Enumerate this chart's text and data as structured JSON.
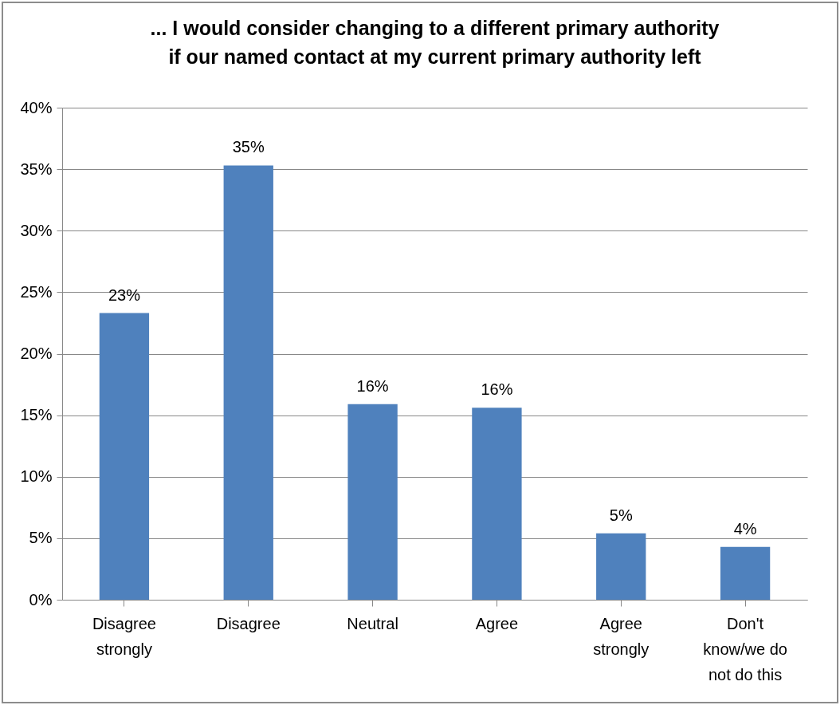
{
  "chart_data": {
    "type": "bar",
    "title": "... I would consider changing to a different primary authority if our named contact at my current primary authority left",
    "categories": [
      "Disagree strongly",
      "Disagree",
      "Neutral",
      "Agree",
      "Agree strongly",
      "Don't know/we do not do this"
    ],
    "values": [
      23.3,
      35.3,
      15.9,
      15.6,
      5.4,
      4.3
    ],
    "value_labels": [
      "23%",
      "35%",
      "16%",
      "16%",
      "5%",
      "4%"
    ],
    "color": "#4f81bd",
    "ylim": [
      0,
      40
    ],
    "yticks": [
      {
        "value": 0,
        "label": "0%"
      },
      {
        "value": 5,
        "label": "5%"
      },
      {
        "value": 10,
        "label": "10%"
      },
      {
        "value": 15,
        "label": "15%"
      },
      {
        "value": 20,
        "label": "20%"
      },
      {
        "value": 25,
        "label": "25%"
      },
      {
        "value": 30,
        "label": "30%"
      },
      {
        "value": 35,
        "label": "35%"
      },
      {
        "value": 40,
        "label": "40%"
      }
    ],
    "grid": "y"
  }
}
